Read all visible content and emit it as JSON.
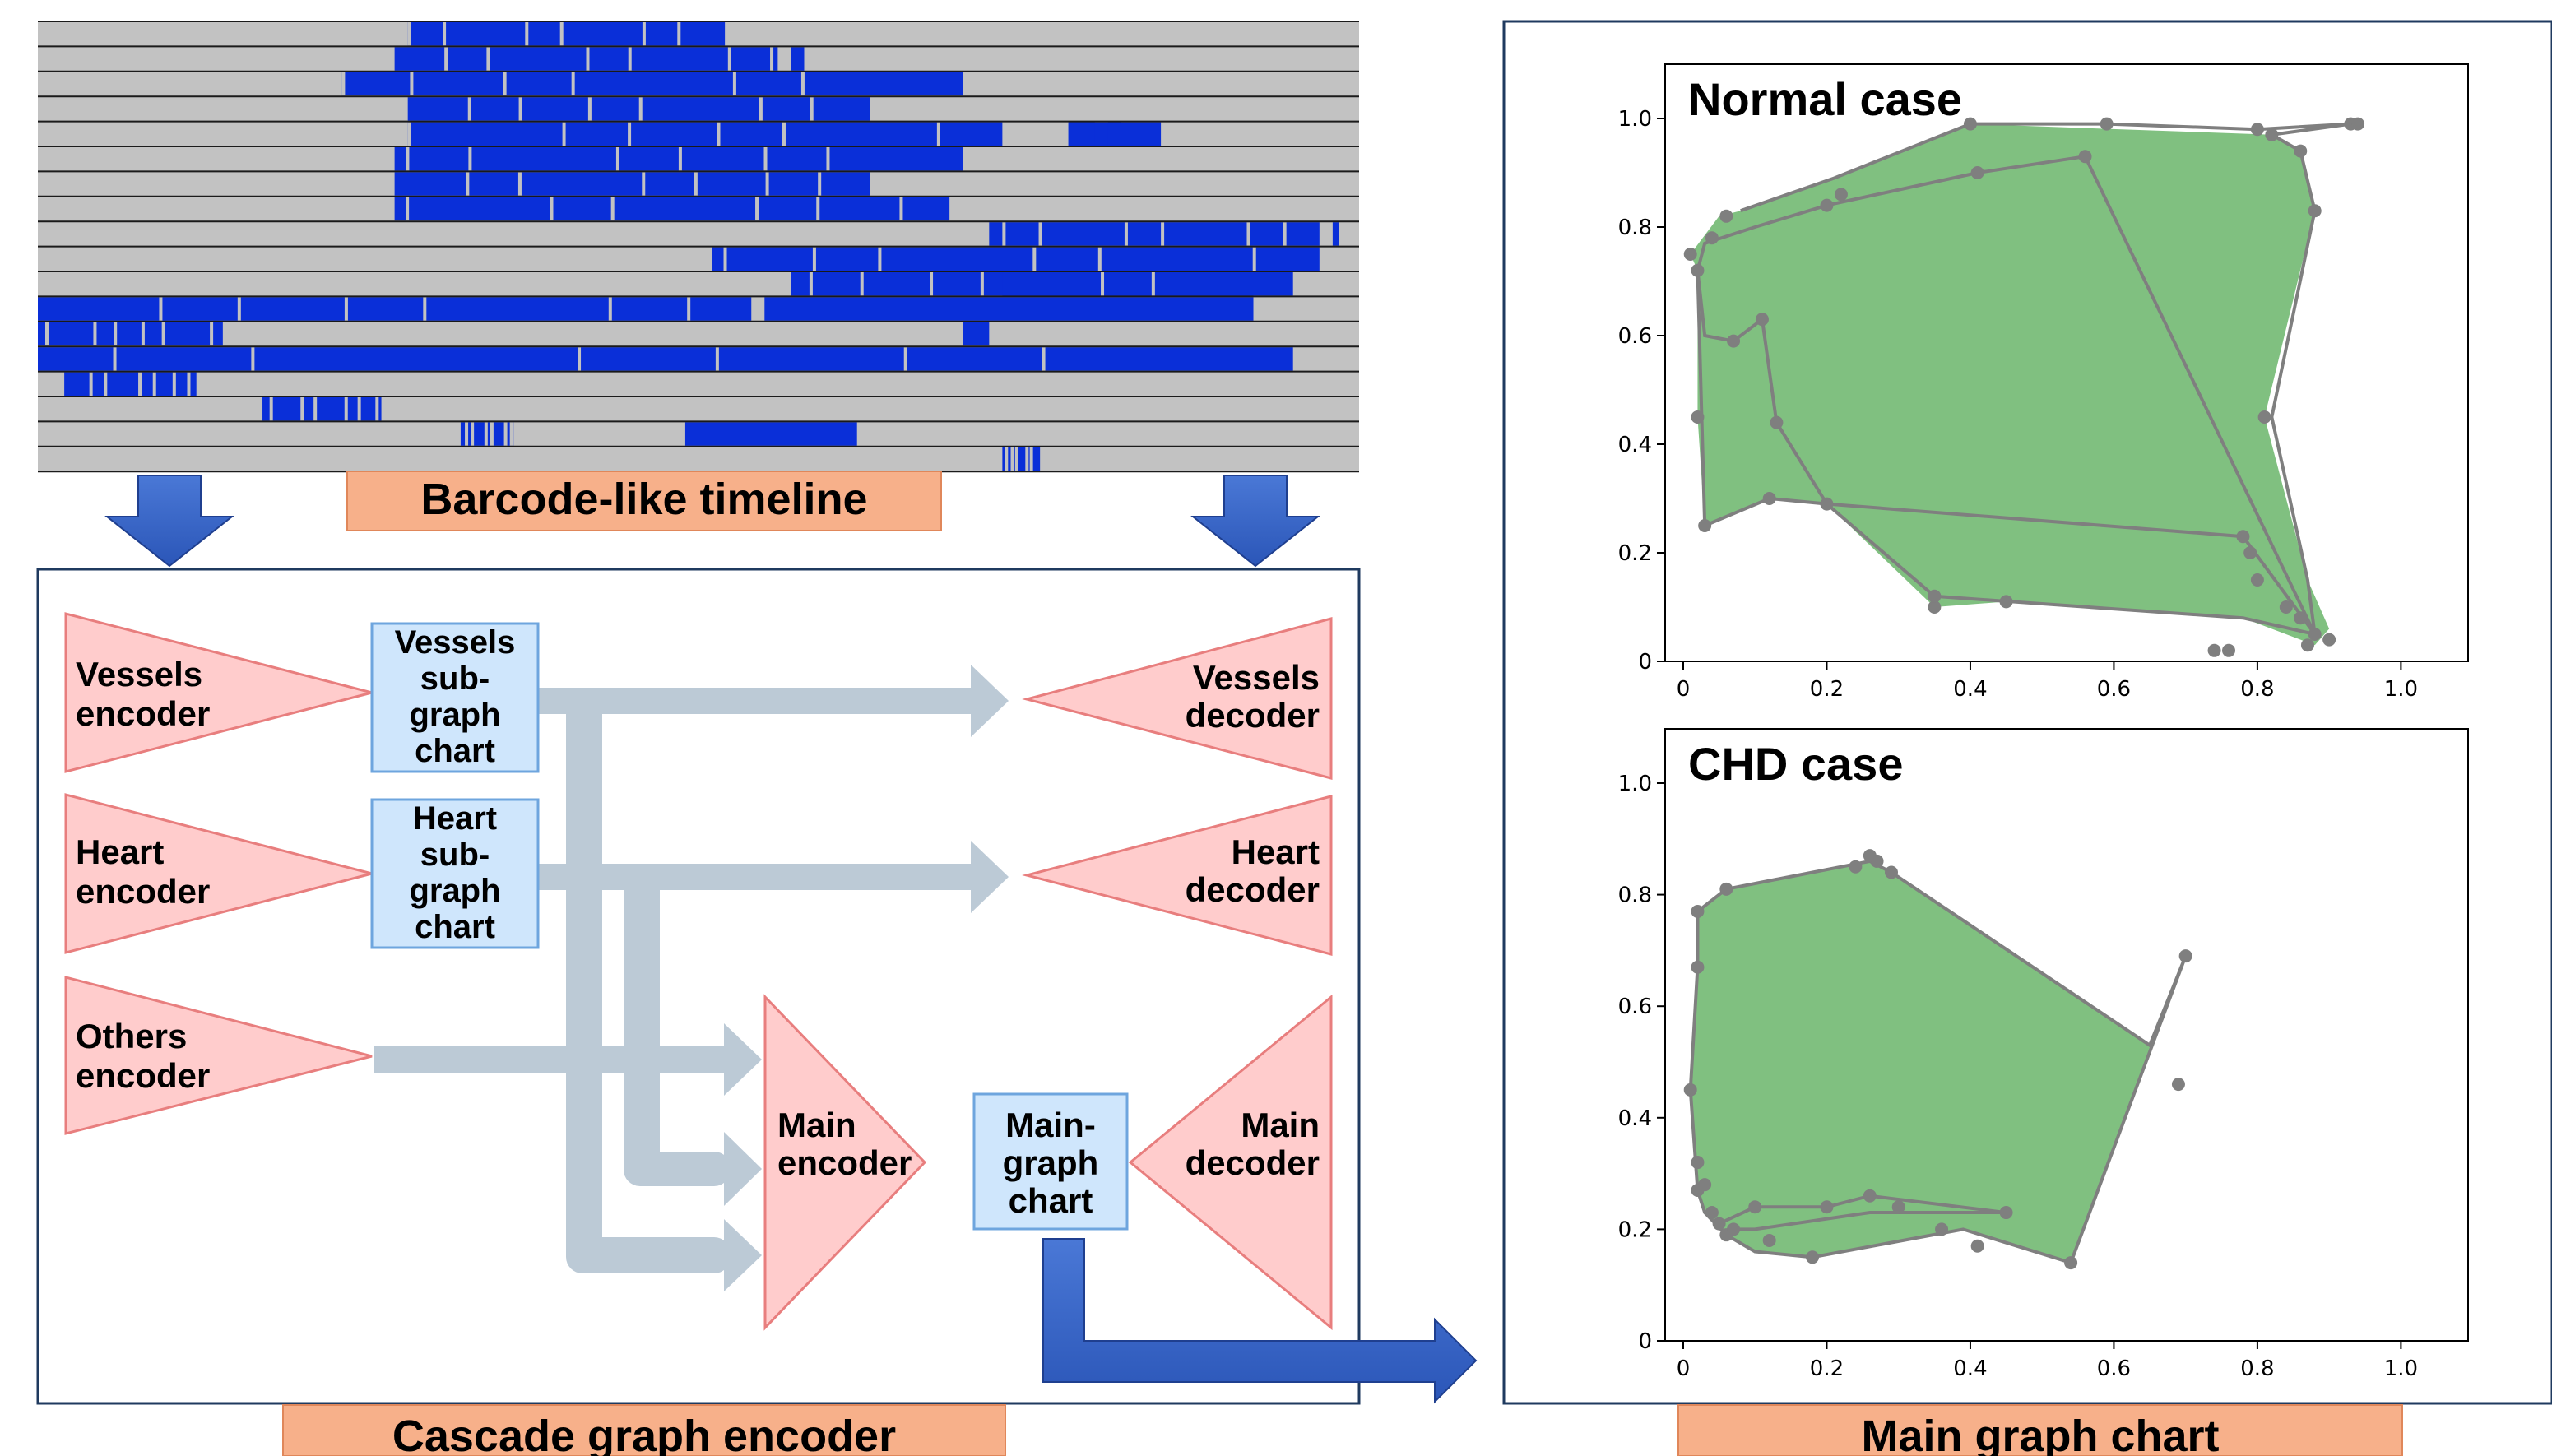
{
  "barcode": {
    "label": "Barcode-like timeline",
    "colors": {
      "bar_blue": "#0a2fd8",
      "bg_gray": "#c2c2c2",
      "line": "#1a1a1a"
    }
  },
  "encoder_panel": {
    "label": "Cascade graph encoder",
    "encoders": [
      {
        "name": "vessels",
        "text": [
          "Vessels",
          "encoder"
        ]
      },
      {
        "name": "heart",
        "text": [
          "Heart",
          "encoder"
        ]
      },
      {
        "name": "others",
        "text": [
          "Others",
          "encoder"
        ]
      }
    ],
    "subgraph_charts": [
      {
        "name": "vessels",
        "text": [
          "Vessels",
          "sub-",
          "graph",
          "chart"
        ]
      },
      {
        "name": "heart",
        "text": [
          "Heart",
          "sub-",
          "graph",
          "chart"
        ]
      }
    ],
    "decoders": [
      {
        "name": "vessels",
        "text": [
          "Vessels",
          "decoder"
        ]
      },
      {
        "name": "heart",
        "text": [
          "Heart",
          "decoder"
        ]
      }
    ],
    "main_encoder": [
      "Main",
      "encoder"
    ],
    "main_graph_chart": [
      "Main-",
      "graph",
      "chart"
    ],
    "main_decoder": [
      "Main",
      "decoder"
    ]
  },
  "chart_panel": {
    "label": "Main graph chart"
  },
  "chart_data": [
    {
      "type": "area",
      "title": "Normal case",
      "xlim": [
        0,
        1.05
      ],
      "ylim": [
        0,
        1.0
      ],
      "xticks": [
        "0",
        "0.2",
        "0.4",
        "0.6",
        "0.8",
        "1.0"
      ],
      "yticks": [
        "0",
        "0.2",
        "0.4",
        "0.6",
        "0.8",
        "1.0"
      ],
      "fill_color": "#80c080",
      "edge_color": "#7f7f7f",
      "hull": [
        [
          0.01,
          0.75
        ],
        [
          0.02,
          0.72
        ],
        [
          0.02,
          0.45
        ],
        [
          0.03,
          0.25
        ],
        [
          0.12,
          0.3
        ],
        [
          0.2,
          0.29
        ],
        [
          0.35,
          0.1
        ],
        [
          0.45,
          0.11
        ],
        [
          0.78,
          0.08
        ],
        [
          0.88,
          0.03
        ],
        [
          0.9,
          0.06
        ],
        [
          0.87,
          0.15
        ],
        [
          0.81,
          0.45
        ],
        [
          0.88,
          0.83
        ],
        [
          0.86,
          0.94
        ],
        [
          0.82,
          0.97
        ],
        [
          0.4,
          0.99
        ],
        [
          0.21,
          0.89
        ],
        [
          0.08,
          0.83
        ],
        [
          0.05,
          0.82
        ]
      ],
      "path": [
        [
          0.02,
          0.72
        ],
        [
          0.03,
          0.6
        ],
        [
          0.07,
          0.59
        ],
        [
          0.11,
          0.63
        ],
        [
          0.13,
          0.44
        ],
        [
          0.2,
          0.29
        ],
        [
          0.78,
          0.23
        ],
        [
          0.88,
          0.05
        ],
        [
          0.56,
          0.93
        ],
        [
          0.41,
          0.9
        ],
        [
          0.2,
          0.84
        ],
        [
          0.1,
          0.8
        ],
        [
          0.03,
          0.77
        ],
        [
          0.02,
          0.72
        ],
        [
          0.03,
          0.25
        ],
        [
          0.12,
          0.3
        ],
        [
          0.2,
          0.29
        ],
        [
          0.35,
          0.12
        ],
        [
          0.78,
          0.08
        ],
        [
          0.88,
          0.05
        ],
        [
          0.87,
          0.15
        ],
        [
          0.82,
          0.45
        ],
        [
          0.88,
          0.83
        ],
        [
          0.86,
          0.94
        ],
        [
          0.82,
          0.97
        ],
        [
          0.93,
          0.99
        ],
        [
          0.8,
          0.98
        ],
        [
          0.59,
          0.99
        ],
        [
          0.4,
          0.99
        ],
        [
          0.21,
          0.89
        ],
        [
          0.08,
          0.83
        ]
      ],
      "points": [
        [
          0.01,
          0.75
        ],
        [
          0.02,
          0.72
        ],
        [
          0.02,
          0.45
        ],
        [
          0.03,
          0.25
        ],
        [
          0.04,
          0.78
        ],
        [
          0.06,
          0.82
        ],
        [
          0.12,
          0.3
        ],
        [
          0.2,
          0.29
        ],
        [
          0.2,
          0.84
        ],
        [
          0.22,
          0.86
        ],
        [
          0.35,
          0.1
        ],
        [
          0.35,
          0.12
        ],
        [
          0.45,
          0.11
        ],
        [
          0.78,
          0.23
        ],
        [
          0.79,
          0.2
        ],
        [
          0.8,
          0.15
        ],
        [
          0.84,
          0.1
        ],
        [
          0.86,
          0.08
        ],
        [
          0.88,
          0.05
        ],
        [
          0.9,
          0.04
        ],
        [
          0.87,
          0.03
        ],
        [
          0.76,
          0.02
        ],
        [
          0.74,
          0.02
        ],
        [
          0.07,
          0.59
        ],
        [
          0.11,
          0.63
        ],
        [
          0.13,
          0.44
        ],
        [
          0.56,
          0.93
        ],
        [
          0.41,
          0.9
        ],
        [
          0.4,
          0.99
        ],
        [
          0.59,
          0.99
        ],
        [
          0.8,
          0.98
        ],
        [
          0.82,
          0.97
        ],
        [
          0.86,
          0.94
        ],
        [
          0.88,
          0.83
        ],
        [
          0.93,
          0.99
        ],
        [
          0.94,
          0.99
        ],
        [
          0.81,
          0.45
        ]
      ]
    },
    {
      "type": "area",
      "title": "CHD case",
      "xlim": [
        0,
        1.05
      ],
      "ylim": [
        0,
        1.0
      ],
      "xticks": [
        "0",
        "0.2",
        "0.4",
        "0.6",
        "0.8",
        "1.0"
      ],
      "yticks": [
        "0",
        "0.2",
        "0.4",
        "0.6",
        "0.8",
        "1.0"
      ],
      "fill_color": "#80c080",
      "edge_color": "#7f7f7f",
      "hull": [
        [
          0.02,
          0.77
        ],
        [
          0.06,
          0.81
        ],
        [
          0.26,
          0.86
        ],
        [
          0.29,
          0.84
        ],
        [
          0.65,
          0.53
        ],
        [
          0.7,
          0.69
        ],
        [
          0.54,
          0.14
        ],
        [
          0.39,
          0.2
        ],
        [
          0.18,
          0.15
        ],
        [
          0.1,
          0.16
        ],
        [
          0.06,
          0.19
        ],
        [
          0.03,
          0.23
        ],
        [
          0.02,
          0.27
        ],
        [
          0.01,
          0.45
        ],
        [
          0.02,
          0.67
        ]
      ],
      "path": [
        [
          0.02,
          0.77
        ],
        [
          0.06,
          0.81
        ],
        [
          0.26,
          0.86
        ],
        [
          0.29,
          0.84
        ],
        [
          0.65,
          0.53
        ],
        [
          0.7,
          0.69
        ],
        [
          0.54,
          0.14
        ],
        [
          0.39,
          0.2
        ],
        [
          0.18,
          0.15
        ],
        [
          0.1,
          0.16
        ],
        [
          0.06,
          0.19
        ],
        [
          0.03,
          0.23
        ],
        [
          0.02,
          0.27
        ],
        [
          0.01,
          0.45
        ],
        [
          0.02,
          0.67
        ],
        [
          0.02,
          0.77
        ]
      ],
      "inner_path": [
        [
          0.05,
          0.21
        ],
        [
          0.1,
          0.24
        ],
        [
          0.2,
          0.24
        ],
        [
          0.26,
          0.26
        ],
        [
          0.45,
          0.23
        ],
        [
          0.26,
          0.23
        ],
        [
          0.1,
          0.2
        ],
        [
          0.07,
          0.2
        ]
      ],
      "points": [
        [
          0.02,
          0.77
        ],
        [
          0.02,
          0.67
        ],
        [
          0.01,
          0.45
        ],
        [
          0.02,
          0.32
        ],
        [
          0.02,
          0.27
        ],
        [
          0.03,
          0.28
        ],
        [
          0.04,
          0.23
        ],
        [
          0.05,
          0.21
        ],
        [
          0.06,
          0.19
        ],
        [
          0.07,
          0.2
        ],
        [
          0.1,
          0.24
        ],
        [
          0.12,
          0.18
        ],
        [
          0.18,
          0.15
        ],
        [
          0.2,
          0.24
        ],
        [
          0.26,
          0.26
        ],
        [
          0.3,
          0.24
        ],
        [
          0.36,
          0.2
        ],
        [
          0.41,
          0.17
        ],
        [
          0.45,
          0.23
        ],
        [
          0.54,
          0.14
        ],
        [
          0.7,
          0.69
        ],
        [
          0.69,
          0.46
        ],
        [
          0.06,
          0.81
        ],
        [
          0.24,
          0.85
        ],
        [
          0.27,
          0.86
        ],
        [
          0.26,
          0.87
        ],
        [
          0.29,
          0.84
        ]
      ]
    }
  ]
}
